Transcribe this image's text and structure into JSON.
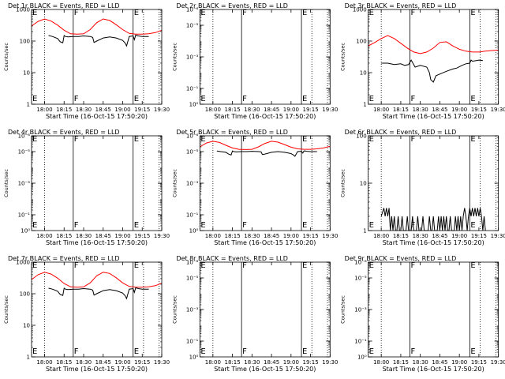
{
  "figure": {
    "x_ticks": [
      "18:00",
      "18:15",
      "18:30",
      "18:45",
      "19:00",
      "19:15",
      "19:30"
    ],
    "x_tick_minutes": [
      10,
      25,
      40,
      55,
      70,
      85,
      100
    ],
    "x_range_minutes": [
      0,
      100
    ],
    "markers": [
      {
        "label": "E",
        "minute": 0,
        "style": "dotted"
      },
      {
        "label": "",
        "minute": 10,
        "style": "dotted"
      },
      {
        "label": "F",
        "minute": 32,
        "style": "solid"
      },
      {
        "label": "E",
        "minute": 78,
        "style": "solid"
      },
      {
        "label": "",
        "minute": 86,
        "style": "dotted"
      },
      {
        "label": "",
        "minute": 98,
        "style": "dotted"
      }
    ],
    "colors": {
      "events": "#000000",
      "lld": "#ff0000",
      "axis": "#000000"
    }
  },
  "chart_data": [
    {
      "type": "line",
      "id": "det1",
      "title": "Det 1r BLACK = Events, RED = LLD",
      "xlabel": "Start Time (16-Oct-15 17:50:20)",
      "ylabel": "Counts/sec",
      "yscale": "log",
      "ylim": [
        1,
        1000
      ],
      "y_ticks": [
        {
          "v": 1,
          "label": "1"
        },
        {
          "v": 10,
          "label": "10"
        },
        {
          "v": 100,
          "label": "100"
        },
        {
          "v": 1000,
          "label": "1000"
        }
      ],
      "series": [
        {
          "name": "LLD",
          "color": "#ff0000",
          "x": [
            0,
            5,
            10,
            15,
            20,
            25,
            30,
            35,
            40,
            45,
            50,
            55,
            60,
            65,
            70,
            75,
            80,
            85,
            90,
            95,
            100
          ],
          "y": [
            300,
            420,
            500,
            430,
            320,
            220,
            170,
            165,
            170,
            230,
            380,
            500,
            450,
            330,
            230,
            175,
            165,
            165,
            170,
            185,
            220
          ]
        },
        {
          "name": "Events",
          "color": "#000000",
          "x": [
            13,
            16,
            20,
            22,
            24,
            25,
            26,
            28,
            32,
            36,
            40,
            45,
            47,
            48,
            50,
            55,
            60,
            65,
            70,
            72,
            73,
            75,
            78,
            79,
            80,
            81,
            82,
            85,
            90
          ],
          "y": [
            150,
            140,
            120,
            95,
            88,
            150,
            140,
            135,
            140,
            140,
            145,
            140,
            130,
            90,
            100,
            125,
            135,
            125,
            105,
            85,
            70,
            140,
            145,
            110,
            155,
            150,
            145,
            140,
            140
          ]
        }
      ]
    },
    {
      "type": "line",
      "id": "det2",
      "title": "Det 2r BLACK = Events, RED = LLD",
      "xlabel": "Start Time (16-Oct-15 17:50:20)",
      "ylabel": "Counts/sec",
      "yscale": "log",
      "ylim": [
        1,
        1000000
      ],
      "y_ticks": [
        {
          "v": 1,
          "label": "10⁰"
        },
        {
          "v": 10,
          "label": "10⁻¹"
        },
        {
          "v": 1000,
          "label": "10⁻³"
        },
        {
          "v": 100000,
          "label": "10⁻⁵"
        },
        {
          "v": 1000000,
          "label": "10⁻⁶"
        }
      ],
      "series": []
    },
    {
      "type": "line",
      "id": "det3",
      "title": "Det 3r BLACK = Events, RED = LLD",
      "xlabel": "Start Time (16-Oct-15 17:50:20)",
      "ylabel": "Counts/sec",
      "yscale": "log",
      "ylim": [
        1,
        1000
      ],
      "y_ticks": [
        {
          "v": 1,
          "label": "1"
        },
        {
          "v": 10,
          "label": "10"
        },
        {
          "v": 100,
          "label": "100"
        },
        {
          "v": 1000,
          "label": "1000"
        }
      ],
      "series": [
        {
          "name": "LLD",
          "color": "#ff0000",
          "x": [
            0,
            5,
            10,
            15,
            20,
            25,
            30,
            35,
            40,
            45,
            50,
            55,
            60,
            65,
            70,
            75,
            80,
            85,
            90,
            95,
            100
          ],
          "y": [
            70,
            90,
            120,
            150,
            120,
            85,
            60,
            45,
            40,
            45,
            60,
            90,
            95,
            70,
            55,
            48,
            45,
            45,
            48,
            50,
            52
          ]
        },
        {
          "name": "Events",
          "color": "#000000",
          "x": [
            10,
            15,
            20,
            25,
            28,
            31,
            33,
            36,
            40,
            45,
            47,
            48,
            50,
            52,
            55,
            60,
            65,
            68,
            72,
            75,
            78,
            79,
            80,
            83,
            85,
            88
          ],
          "y": [
            20,
            20,
            18,
            19,
            17,
            18,
            25,
            15,
            17,
            15,
            10,
            6,
            5,
            8,
            9,
            11,
            13,
            14,
            17,
            19,
            20,
            25,
            23,
            24,
            25,
            24
          ]
        }
      ]
    },
    {
      "type": "line",
      "id": "det4",
      "title": "Det 4r BLACK = Events, RED = LLD",
      "xlabel": "Start Time (16-Oct-15 17:50:20)",
      "ylabel": "Counts/sec",
      "yscale": "log",
      "ylim": [
        1,
        1000000
      ],
      "y_ticks": [
        {
          "v": 1,
          "label": "10⁰"
        },
        {
          "v": 10,
          "label": "10⁻¹"
        },
        {
          "v": 1000,
          "label": "10⁻³"
        },
        {
          "v": 100000,
          "label": "10⁻⁵"
        },
        {
          "v": 1000000,
          "label": "10⁻⁶"
        }
      ],
      "series": []
    },
    {
      "type": "line",
      "id": "det5",
      "title": "Det 5r BLACK = Events, RED = LLD",
      "xlabel": "Start Time (16-Oct-15 17:50:20)",
      "ylabel": "Counts/sec",
      "yscale": "log",
      "ylim": [
        1,
        1000000
      ],
      "y_ticks": [
        {
          "v": 1,
          "label": "10⁰"
        },
        {
          "v": 10,
          "label": "10⁻¹"
        },
        {
          "v": 1000,
          "label": "10⁻³"
        },
        {
          "v": 100000,
          "label": "10⁻⁵"
        },
        {
          "v": 1000000,
          "label": "10⁻⁶"
        }
      ],
      "series": [
        {
          "name": "LLD",
          "color": "#ff0000",
          "x": [
            0,
            5,
            10,
            15,
            20,
            25,
            30,
            35,
            40,
            45,
            50,
            55,
            60,
            65,
            70,
            75,
            80,
            85,
            90,
            95,
            100
          ],
          "y": [
            200000,
            350000,
            450000,
            380000,
            250000,
            170000,
            140000,
            135000,
            140000,
            200000,
            330000,
            450000,
            400000,
            280000,
            190000,
            150000,
            140000,
            140000,
            150000,
            170000,
            220000
          ]
        },
        {
          "name": "Events",
          "color": "#000000",
          "x": [
            13,
            16,
            20,
            22,
            24,
            25,
            26,
            28,
            32,
            36,
            40,
            45,
            47,
            48,
            50,
            55,
            60,
            65,
            70,
            72,
            73,
            75,
            78,
            79,
            80,
            81,
            82,
            85,
            90
          ],
          "y": [
            110000,
            100000,
            90000,
            70000,
            60000,
            110000,
            100000,
            95000,
            100000,
            100000,
            105000,
            100000,
            95000,
            65000,
            70000,
            90000,
            100000,
            90000,
            75000,
            60000,
            50000,
            100000,
            105000,
            80000,
            110000,
            108000,
            105000,
            100000,
            100000
          ]
        }
      ]
    },
    {
      "type": "line",
      "id": "det6",
      "title": "Det 6r BLACK = Events, RED = LLD",
      "xlabel": "Start Time (16-Oct-15 17:50:20)",
      "ylabel": "Counts/sec",
      "yscale": "log",
      "ylim": [
        1,
        100
      ],
      "y_ticks": [
        {
          "v": 1,
          "label": "1"
        },
        {
          "v": 10,
          "label": "10"
        },
        {
          "v": 100,
          "label": "100"
        }
      ],
      "series": [
        {
          "name": "Events",
          "color": "#000000",
          "x": [
            10,
            12,
            13,
            14,
            15,
            16,
            17,
            18,
            19,
            20,
            21,
            22,
            23,
            24,
            25,
            26,
            27,
            28,
            29,
            30,
            31,
            32,
            33,
            34,
            35,
            36,
            37,
            38,
            39,
            40,
            41,
            42,
            43,
            44,
            45,
            46,
            47,
            48,
            49,
            50,
            51,
            52,
            53,
            54,
            55,
            56,
            57,
            58,
            59,
            60,
            61,
            62,
            63,
            64,
            65,
            66,
            67,
            68,
            69,
            70,
            71,
            72,
            73,
            74,
            75,
            76,
            77,
            78,
            79,
            80,
            81,
            82,
            83,
            84,
            85,
            86,
            87,
            88,
            89,
            90
          ],
          "y": [
            2,
            3,
            2,
            3,
            2,
            3,
            1,
            2,
            1,
            2,
            1,
            1,
            2,
            1,
            1,
            2,
            1,
            1,
            1,
            2,
            1,
            1,
            1,
            2,
            1,
            1,
            1,
            2,
            1,
            1,
            1,
            2,
            1,
            1,
            1,
            1,
            2,
            1,
            1,
            2,
            1,
            1,
            1,
            2,
            1,
            2,
            1,
            2,
            1,
            2,
            1,
            1,
            2,
            1,
            1,
            1,
            2,
            1,
            2,
            1,
            2,
            1,
            2,
            3,
            2,
            1,
            2,
            3,
            2,
            3,
            2,
            3,
            2,
            3,
            2,
            3,
            2,
            1,
            2,
            1
          ]
        }
      ]
    },
    {
      "type": "line",
      "id": "det7",
      "title": "Det 7r BLACK = Events, RED = LLD",
      "xlabel": "Start Time (16-Oct-15 17:50:20)",
      "ylabel": "Counts/sec",
      "yscale": "log",
      "ylim": [
        1,
        1000
      ],
      "y_ticks": [
        {
          "v": 1,
          "label": "1"
        },
        {
          "v": 10,
          "label": "10"
        },
        {
          "v": 100,
          "label": "100"
        },
        {
          "v": 1000,
          "label": "1000"
        }
      ],
      "series": [
        {
          "name": "LLD",
          "color": "#ff0000",
          "x": [
            0,
            5,
            10,
            15,
            20,
            25,
            30,
            35,
            40,
            45,
            50,
            55,
            60,
            65,
            70,
            75,
            80,
            85,
            90,
            95,
            100
          ],
          "y": [
            280,
            400,
            480,
            420,
            310,
            210,
            165,
            160,
            165,
            220,
            370,
            480,
            440,
            320,
            220,
            170,
            160,
            160,
            165,
            180,
            215
          ]
        },
        {
          "name": "Events",
          "color": "#000000",
          "x": [
            13,
            16,
            20,
            22,
            24,
            25,
            26,
            28,
            32,
            36,
            40,
            45,
            47,
            48,
            50,
            55,
            60,
            65,
            70,
            72,
            73,
            75,
            78,
            79,
            80,
            81,
            82,
            85,
            90
          ],
          "y": [
            150,
            140,
            120,
            95,
            88,
            150,
            140,
            135,
            140,
            140,
            145,
            140,
            130,
            90,
            100,
            125,
            135,
            125,
            105,
            85,
            70,
            140,
            145,
            110,
            155,
            150,
            145,
            140,
            140
          ]
        }
      ]
    },
    {
      "type": "line",
      "id": "det8",
      "title": "Det 8r BLACK = Events, RED = LLD",
      "xlabel": "Start Time (16-Oct-15 17:50:20)",
      "ylabel": "Counts/sec",
      "yscale": "log",
      "ylim": [
        1,
        1000000
      ],
      "y_ticks": [
        {
          "v": 1,
          "label": "10⁰"
        },
        {
          "v": 10,
          "label": "10⁻¹"
        },
        {
          "v": 1000,
          "label": "10⁻³"
        },
        {
          "v": 100000,
          "label": "10⁻⁵"
        },
        {
          "v": 1000000,
          "label": "10⁻⁶"
        }
      ],
      "series": []
    },
    {
      "type": "line",
      "id": "det9",
      "title": "Det 9r BLACK = Events, RED = LLD",
      "xlabel": "Start Time (16-Oct-15 17:50:20)",
      "ylabel": "Counts/sec",
      "yscale": "log",
      "ylim": [
        1,
        1000000
      ],
      "y_ticks": [
        {
          "v": 1,
          "label": "10⁰"
        },
        {
          "v": 10,
          "label": "10⁻¹"
        },
        {
          "v": 1000,
          "label": "10⁻³"
        },
        {
          "v": 100000,
          "label": "10⁻⁵"
        },
        {
          "v": 1000000,
          "label": "10⁻⁶"
        }
      ],
      "series": []
    }
  ]
}
